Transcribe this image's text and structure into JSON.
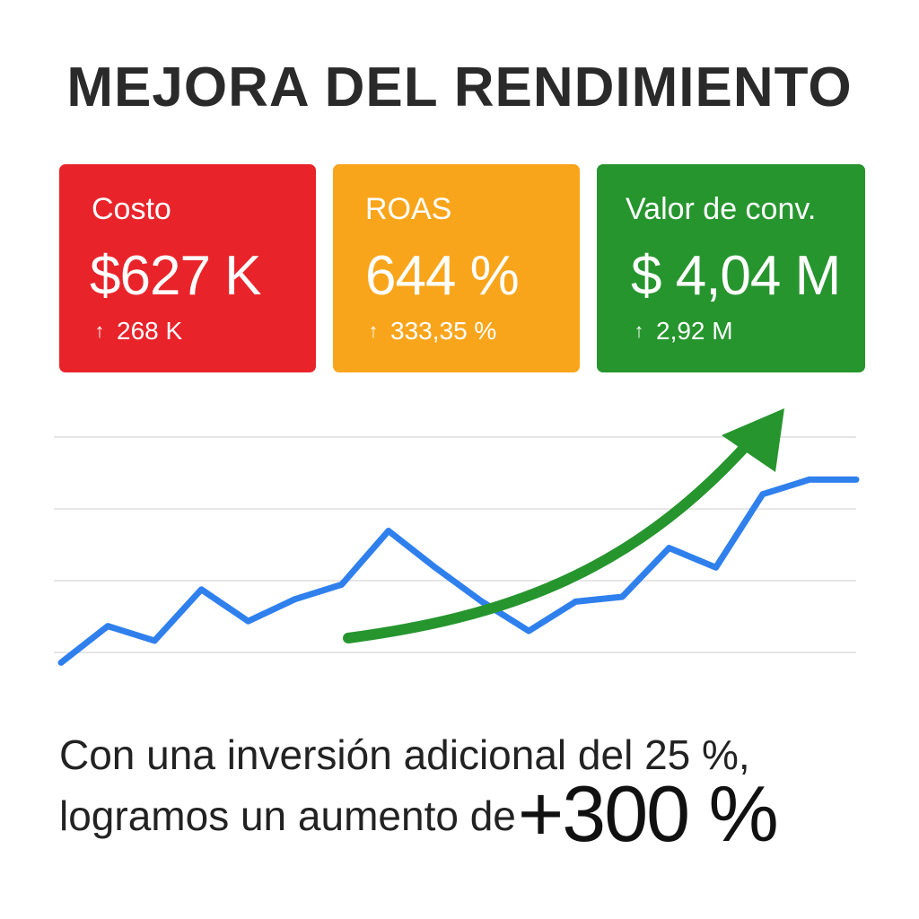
{
  "title": "MEJORA DEL RENDIMIENTO",
  "cards": [
    {
      "label": "Costo",
      "value": "$627 K",
      "delta": "268 K",
      "color": "#e8242a",
      "arrow_icon": "arrow-up-icon"
    },
    {
      "label": "ROAS",
      "value": "644 %",
      "delta": "333,35 %",
      "color": "#f9a51b",
      "arrow_icon": "arrow-up-icon"
    },
    {
      "label": "Valor de conv.",
      "value": "$ 4,04 M",
      "delta": "2,92 M",
      "color": "#26952e",
      "arrow_icon": "arrow-up-icon"
    }
  ],
  "chart_data": {
    "type": "line",
    "title": "",
    "xlabel": "",
    "ylabel": "",
    "grid": true,
    "legend": "none",
    "x": [
      0,
      1,
      2,
      3,
      4,
      5,
      6,
      7,
      8,
      9,
      10,
      11,
      12,
      13,
      14,
      15,
      16,
      17
    ],
    "series": [
      {
        "values": [
          5,
          20,
          14,
          35,
          22,
          31,
          37,
          59,
          44,
          30,
          18,
          30,
          32,
          52,
          44,
          74,
          80,
          80
        ],
        "color": "#2f80ed"
      }
    ],
    "trend_arrow": {
      "direction": "up",
      "color": "#26952e"
    },
    "ylim": [
      0,
      100
    ]
  },
  "caption": {
    "line1": "Con una inversión adicional del 25 %,",
    "line2": "logramos un aumento de",
    "highlight": "+300 %"
  }
}
